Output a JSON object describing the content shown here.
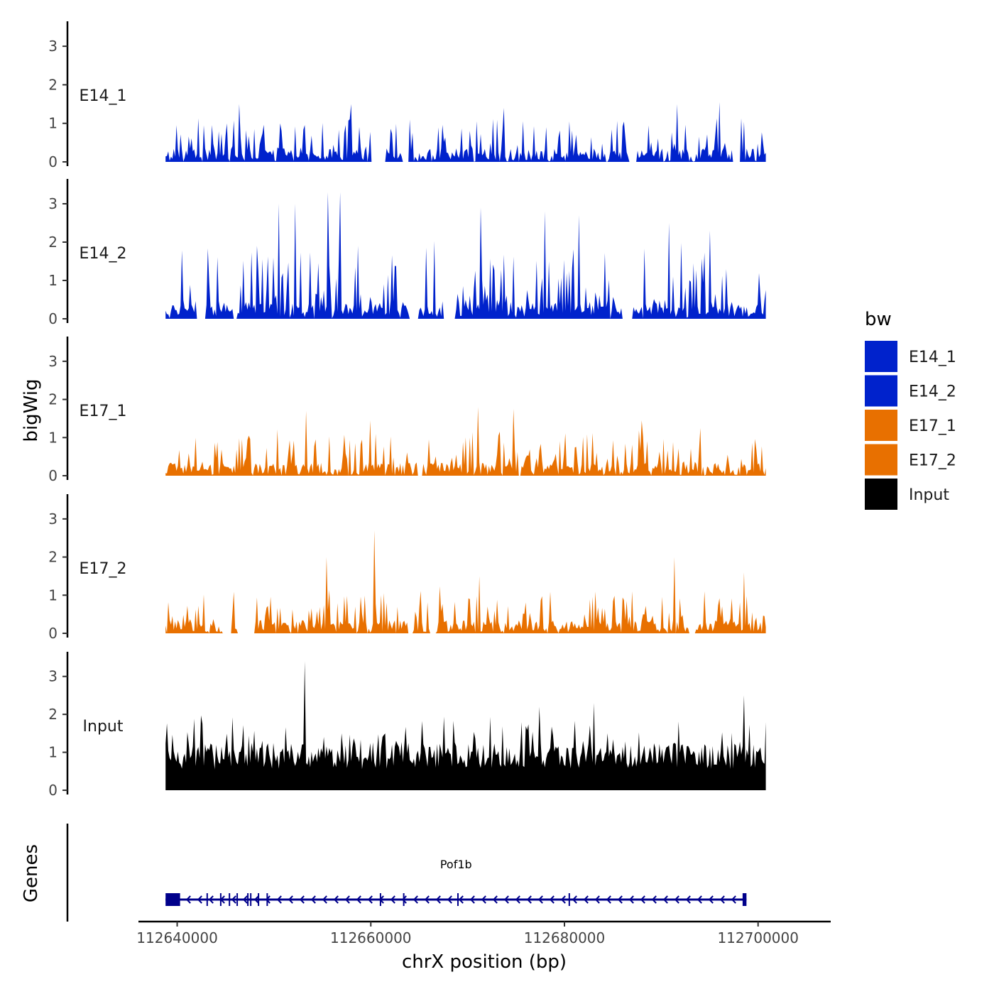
{
  "chart_data": {
    "type": "area",
    "title": "",
    "xlabel": "chrX position (bp)",
    "ylabel": "bigWig",
    "genes_label": "Genes",
    "xlim": [
      112636000,
      112707500
    ],
    "data_range": [
      112638800,
      112700800
    ],
    "x_ticks": [
      112640000,
      112660000,
      112680000,
      112700000
    ],
    "x_tick_labels": [
      "112640000",
      "112660000",
      "112680000",
      "112700000"
    ],
    "ylim": [
      0,
      3.5
    ],
    "y_ticks": [
      0,
      1,
      2,
      3
    ],
    "y_tick_labels": [
      "0",
      "1",
      "2",
      "3"
    ],
    "legend": {
      "title": "bw",
      "position": "right",
      "entries": [
        {
          "label": "E14_1",
          "color": "#0022cc"
        },
        {
          "label": "E14_2",
          "color": "#0022cc"
        },
        {
          "label": "E17_1",
          "color": "#e87000"
        },
        {
          "label": "E17_2",
          "color": "#e87000"
        },
        {
          "label": "Input",
          "color": "#000000"
        }
      ]
    },
    "series": [
      {
        "name": "E14_1",
        "color": "#0022cc",
        "approx_max": 1.55,
        "peaks": [
          [
            112646400,
            1.5
          ],
          [
            112658000,
            1.5
          ],
          [
            112673800,
            1.4
          ],
          [
            112691700,
            1.5
          ],
          [
            112696000,
            1.55
          ]
        ],
        "gaps": [
          [
            112660000,
            112661600
          ],
          [
            112663300,
            112664000
          ],
          [
            112686600,
            112687500
          ],
          [
            112697300,
            112698200
          ]
        ]
      },
      {
        "name": "E14_2",
        "color": "#0022cc",
        "approx_max": 3.3,
        "peaks": [
          [
            112650500,
            3.0
          ],
          [
            112652200,
            3.0
          ],
          [
            112655600,
            3.3
          ],
          [
            112656800,
            3.3
          ],
          [
            112671300,
            2.9
          ],
          [
            112678000,
            2.8
          ],
          [
            112681500,
            2.7
          ],
          [
            112690800,
            2.5
          ],
          [
            112695000,
            2.3
          ]
        ],
        "gaps": [
          [
            112642000,
            112643000
          ],
          [
            112645800,
            112646200
          ],
          [
            112664000,
            112665000
          ],
          [
            112667500,
            112668800
          ],
          [
            112686000,
            112687000
          ]
        ]
      },
      {
        "name": "E17_1",
        "color": "#e87000",
        "approx_max": 1.8,
        "peaks": [
          [
            112653300,
            1.7
          ],
          [
            112660000,
            1.45
          ],
          [
            112671000,
            1.8
          ],
          [
            112674800,
            1.75
          ],
          [
            112688000,
            1.45
          ],
          [
            112694000,
            1.25
          ]
        ],
        "gaps": [
          [
            112664800,
            112665300
          ],
          [
            112675200,
            112675500
          ]
        ]
      },
      {
        "name": "E17_2",
        "color": "#e87000",
        "approx_max": 2.7,
        "peaks": [
          [
            112655400,
            2.0
          ],
          [
            112660400,
            2.7
          ],
          [
            112671200,
            1.5
          ],
          [
            112691400,
            2.0
          ],
          [
            112698500,
            1.6
          ]
        ],
        "gaps": [
          [
            112644600,
            112645600
          ],
          [
            112646200,
            112648000
          ],
          [
            112663800,
            112664400
          ],
          [
            112666000,
            112666700
          ],
          [
            112692800,
            112693500
          ]
        ]
      },
      {
        "name": "Input",
        "color": "#000000",
        "approx_max": 3.4,
        "peaks": [
          [
            112653200,
            3.4
          ],
          [
            112683100,
            2.3
          ],
          [
            112698600,
            2.5
          ],
          [
            112677400,
            2.2
          ]
        ],
        "gaps": []
      }
    ],
    "genes": [
      {
        "name": "Pof1b",
        "strand": "-",
        "start": 112638800,
        "end": 112698800,
        "color": "#00008b",
        "exon_blocks": [
          [
            112638800,
            112640300
          ],
          [
            112698400,
            112698800
          ]
        ],
        "exon_ticks": [
          112643100,
          112644500,
          112645400,
          112646200,
          112647300,
          112647600,
          112648400,
          112649300,
          112661000,
          112663400,
          112669000,
          112680500
        ]
      }
    ]
  }
}
